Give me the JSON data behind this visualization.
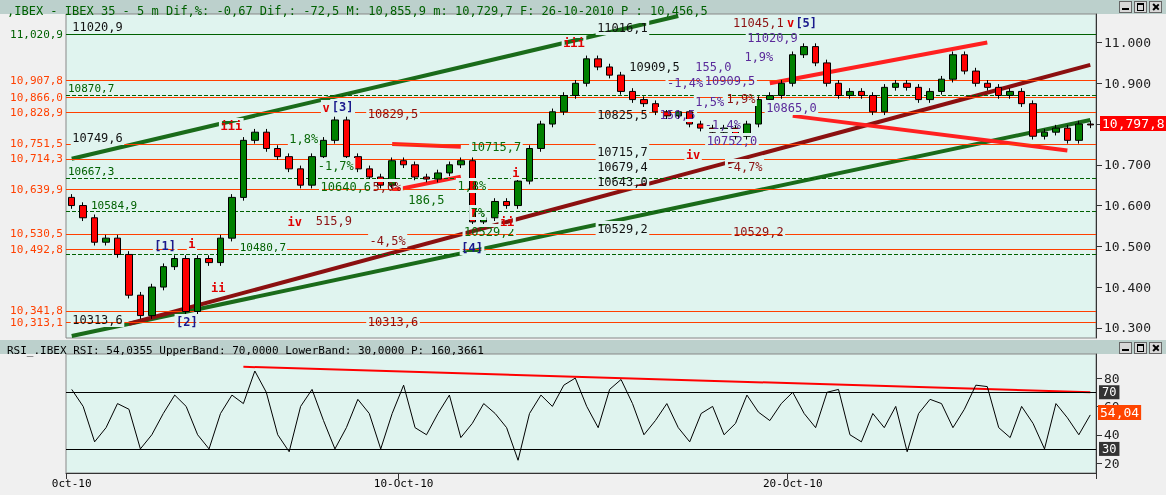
{
  "chart_data": [
    {
      "type": "candlestick",
      "title": ",IBEX - IBEX 35 - 5 m Dif,%: -0,67 Dif,: -72,5 M: 10,855,9 m: 10,729,7 F: 26-10-2010 P : 10,456,5",
      "categories": [
        null,
        null,
        null,
        null,
        null,
        null,
        null,
        null,
        null,
        null,
        null,
        null,
        null,
        null,
        null,
        null,
        null,
        null,
        null,
        null,
        null,
        null,
        null,
        null,
        null,
        null,
        null,
        null,
        null,
        null,
        null,
        null,
        null,
        null,
        null,
        null,
        null,
        null,
        null,
        null,
        null,
        null,
        null,
        null,
        null,
        null,
        null,
        null,
        null,
        null,
        null,
        null,
        null,
        null,
        null,
        null,
        null,
        null,
        null,
        null,
        null,
        null,
        null,
        null,
        null,
        null,
        null,
        null,
        null,
        null,
        null,
        null,
        null,
        null,
        null,
        null,
        null,
        null,
        null,
        null,
        null,
        null,
        null,
        null,
        null,
        null,
        null,
        null,
        null,
        null
      ],
      "ohlc": [
        [
          10620,
          10628,
          10592,
          10600
        ],
        [
          10600,
          10608,
          10562,
          10570
        ],
        [
          10570,
          10578,
          10502,
          10510
        ],
        [
          10510,
          10528,
          10502,
          10520
        ],
        [
          10520,
          10528,
          10472,
          10480
        ],
        [
          10480,
          10488,
          10372,
          10380
        ],
        [
          10380,
          10388,
          10322,
          10330
        ],
        [
          10330,
          10408,
          10322,
          10400
        ],
        [
          10400,
          10458,
          10392,
          10450
        ],
        [
          10450,
          10478,
          10442,
          10470
        ],
        [
          10470,
          10478,
          10332,
          10340
        ],
        [
          10340,
          10478,
          10332,
          10470
        ],
        [
          10470,
          10478,
          10452,
          10460
        ],
        [
          10460,
          10528,
          10452,
          10520
        ],
        [
          10520,
          10628,
          10512,
          10620
        ],
        [
          10620,
          10768,
          10612,
          10760
        ],
        [
          10760,
          10788,
          10752,
          10780
        ],
        [
          10780,
          10788,
          10732,
          10740
        ],
        [
          10740,
          10748,
          10712,
          10720
        ],
        [
          10720,
          10728,
          10682,
          10690
        ],
        [
          10690,
          10698,
          10642,
          10650
        ],
        [
          10650,
          10728,
          10642,
          10720
        ],
        [
          10720,
          10768,
          10712,
          10760
        ],
        [
          10760,
          10818,
          10752,
          10810
        ],
        [
          10810,
          10818,
          10712,
          10720
        ],
        [
          10720,
          10728,
          10682,
          10690
        ],
        [
          10690,
          10698,
          10662,
          10670
        ],
        [
          10670,
          10678,
          10642,
          10650
        ],
        [
          10650,
          10718,
          10642,
          10710
        ],
        [
          10710,
          10718,
          10692,
          10700
        ],
        [
          10700,
          10708,
          10662,
          10670
        ],
        [
          10670,
          10678,
          10657,
          10665
        ],
        [
          10665,
          10688,
          10657,
          10680
        ],
        [
          10680,
          10708,
          10672,
          10700
        ],
        [
          10700,
          10718,
          10692,
          10710
        ],
        [
          10710,
          10718,
          10552,
          10560
        ],
        [
          10560,
          10578,
          10552,
          10570
        ],
        [
          10570,
          10618,
          10562,
          10610
        ],
        [
          10610,
          10618,
          10592,
          10600
        ],
        [
          10600,
          10668,
          10592,
          10660
        ],
        [
          10660,
          10748,
          10652,
          10740
        ],
        [
          10740,
          10808,
          10732,
          10800
        ],
        [
          10800,
          10838,
          10792,
          10830
        ],
        [
          10830,
          10878,
          10822,
          10870
        ],
        [
          10870,
          10908,
          10862,
          10900
        ],
        [
          10900,
          10968,
          10892,
          10960
        ],
        [
          10960,
          10968,
          10932,
          10940
        ],
        [
          10940,
          10948,
          10912,
          10920
        ],
        [
          10920,
          10928,
          10872,
          10880
        ],
        [
          10880,
          10888,
          10852,
          10860
        ],
        [
          10860,
          10868,
          10842,
          10850
        ],
        [
          10850,
          10858,
          10822,
          10830
        ],
        [
          10830,
          10838,
          10812,
          10820
        ],
        [
          10820,
          10838,
          10812,
          10830
        ],
        [
          10830,
          10838,
          10792,
          10800
        ],
        [
          10800,
          10808,
          10782,
          10790
        ],
        [
          10790,
          10798,
          10772,
          10780
        ],
        [
          10780,
          10798,
          10772,
          10790
        ],
        [
          10790,
          10798,
          10762,
          10770
        ],
        [
          10770,
          10808,
          10762,
          10800
        ],
        [
          10800,
          10868,
          10792,
          10860
        ],
        [
          10860,
          10878,
          10852,
          10870
        ],
        [
          10870,
          10908,
          10862,
          10900
        ],
        [
          10900,
          10978,
          10892,
          10970
        ],
        [
          10970,
          10998,
          10962,
          10990
        ],
        [
          10990,
          10998,
          10942,
          10950
        ],
        [
          10950,
          10958,
          10892,
          10900
        ],
        [
          10900,
          10908,
          10862,
          10870
        ],
        [
          10870,
          10888,
          10862,
          10880
        ],
        [
          10880,
          10888,
          10862,
          10870
        ],
        [
          10870,
          10878,
          10822,
          10830
        ],
        [
          10830,
          10898,
          10822,
          10890
        ],
        [
          10890,
          10908,
          10882,
          10900
        ],
        [
          10900,
          10908,
          10882,
          10890
        ],
        [
          10890,
          10898,
          10852,
          10860
        ],
        [
          10860,
          10888,
          10852,
          10880
        ],
        [
          10880,
          10918,
          10872,
          10910
        ],
        [
          10910,
          10978,
          10902,
          10970
        ],
        [
          10970,
          10978,
          10922,
          10930
        ],
        [
          10930,
          10938,
          10892,
          10900
        ],
        [
          10900,
          10908,
          10882,
          10890
        ],
        [
          10890,
          10898,
          10862,
          10870
        ],
        [
          10870,
          10888,
          10862,
          10880
        ],
        [
          10880,
          10888,
          10842,
          10850
        ],
        [
          10850,
          10858,
          10762,
          10770
        ],
        [
          10770,
          10788,
          10762,
          10780
        ],
        [
          10780,
          10798,
          10772,
          10790
        ],
        [
          10790,
          10798,
          10752,
          10760
        ],
        [
          10760,
          10808,
          10752,
          10800
        ],
        [
          10800,
          10808,
          10790,
          10797.8
        ]
      ],
      "colors": [
        "#ff0000",
        "#ff0000",
        "#ff0000",
        "#008000",
        "#ff0000",
        "#ff0000",
        "#ff0000",
        "#008000",
        "#008000",
        "#008000",
        "#ff0000",
        "#008000",
        "#ff0000",
        "#008000",
        "#008000",
        "#008000",
        "#008000",
        "#ff0000",
        "#ff0000",
        "#ff0000",
        "#ff0000",
        "#008000",
        "#008000",
        "#008000",
        "#ff0000",
        "#ff0000",
        "#ff0000",
        "#ff0000",
        "#008000",
        "#ff0000",
        "#ff0000",
        "#ff0000",
        "#008000",
        "#008000",
        "#008000",
        "#ff0000",
        "#008000",
        "#008000",
        "#ff0000",
        "#008000",
        "#008000",
        "#008000",
        "#008000",
        "#008000",
        "#008000",
        "#008000",
        "#ff0000",
        "#ff0000",
        "#ff0000",
        "#ff0000",
        "#ff0000",
        "#ff0000",
        "#ff0000",
        "#008000",
        "#ff0000",
        "#ff0000",
        "#ff0000",
        "#008000",
        "#ff0000",
        "#008000",
        "#008000",
        "#008000",
        "#008000",
        "#008000",
        "#008000",
        "#ff0000",
        "#ff0000",
        "#ff0000",
        "#008000",
        "#ff0000",
        "#ff0000",
        "#008000",
        "#008000",
        "#ff0000",
        "#ff0000",
        "#008000",
        "#008000",
        "#008000",
        "#ff0000",
        "#ff0000",
        "#ff0000",
        "#ff0000",
        "#008000",
        "#ff0000",
        "#ff0000",
        "#008000",
        "#008000",
        "#ff0000",
        "#008000",
        "#ff0000"
      ],
      "series": [
        {
          "type": "line",
          "color": "#1a6b1a",
          "values": [
            10715,
            null,
            null,
            null,
            null,
            null,
            null,
            null,
            null,
            null,
            null,
            null,
            null,
            null,
            null,
            null,
            null,
            null,
            null,
            null,
            null,
            null,
            null,
            null,
            null,
            null,
            null,
            null,
            null,
            null,
            null,
            null,
            null,
            null,
            null,
            null,
            null,
            null,
            null,
            null,
            null,
            null,
            null,
            null,
            null,
            null,
            null,
            null,
            null,
            null,
            null,
            null,
            null,
            11065,
            null,
            null,
            null,
            null,
            null,
            null,
            null,
            null,
            null,
            null,
            null,
            null,
            null,
            null,
            null,
            null,
            null,
            null,
            null,
            null,
            null,
            null,
            null,
            null,
            null,
            null,
            null,
            null,
            null,
            null,
            null,
            null,
            null,
            null,
            null,
            null
          ]
        },
        {
          "type": "line",
          "color": "#1a6b1a",
          "values": [
            10280,
            null,
            null,
            null,
            null,
            null,
            null,
            null,
            null,
            null,
            null,
            null,
            null,
            null,
            null,
            null,
            null,
            null,
            null,
            null,
            null,
            null,
            null,
            null,
            null,
            null,
            null,
            null,
            null,
            null,
            null,
            null,
            null,
            null,
            null,
            null,
            null,
            null,
            null,
            null,
            null,
            null,
            null,
            null,
            null,
            null,
            null,
            null,
            null,
            null,
            null,
            null,
            null,
            null,
            null,
            null,
            null,
            null,
            null,
            null,
            null,
            null,
            null,
            null,
            null,
            null,
            null,
            null,
            null,
            null,
            null,
            null,
            null,
            null,
            null,
            null,
            null,
            null,
            null,
            null,
            null,
            null,
            null,
            null,
            null,
            null,
            null,
            null,
            null,
            10810
          ]
        },
        {
          "type": "line",
          "color": "#8b1010",
          "values": [
            null,
            null,
            null,
            null,
            null,
            10310,
            null,
            null,
            null,
            null,
            null,
            null,
            null,
            null,
            null,
            null,
            null,
            null,
            null,
            null,
            null,
            null,
            null,
            null,
            null,
            null,
            null,
            null,
            null,
            null,
            null,
            null,
            null,
            null,
            null,
            null,
            null,
            null,
            null,
            null,
            null,
            null,
            null,
            null,
            null,
            null,
            null,
            null,
            null,
            null,
            null,
            null,
            null,
            null,
            null,
            null,
            null,
            null,
            null,
            null,
            null,
            null,
            null,
            null,
            null,
            null,
            null,
            null,
            null,
            null,
            null,
            null,
            null,
            null,
            null,
            null,
            null,
            null,
            null,
            null,
            null,
            null,
            null,
            null,
            null,
            null,
            null,
            null,
            null,
            10945
          ]
        },
        {
          "type": "line",
          "color": "#ff2020",
          "values": [
            null,
            null,
            null,
            null,
            null,
            null,
            null,
            null,
            null,
            null,
            null,
            null,
            null,
            null,
            null,
            null,
            null,
            null,
            null,
            null,
            null,
            null,
            null,
            null,
            null,
            null,
            null,
            null,
            null,
            null,
            null,
            null,
            null,
            null,
            null,
            null,
            null,
            null,
            null,
            null,
            null,
            null,
            null,
            null,
            null,
            null,
            null,
            null,
            null,
            null,
            null,
            null,
            null,
            null,
            null,
            null,
            null,
            null,
            null,
            null,
            null,
            10900,
            null,
            null,
            null,
            null,
            null,
            null,
            null,
            null,
            null,
            null,
            null,
            null,
            null,
            null,
            null,
            null,
            null,
            null,
            11000,
            null,
            null,
            null,
            null,
            null,
            null,
            null,
            null,
            null
          ]
        },
        {
          "type": "line",
          "color": "#ff2020",
          "values": [
            null,
            null,
            null,
            null,
            null,
            null,
            null,
            null,
            null,
            null,
            null,
            null,
            null,
            null,
            null,
            null,
            null,
            null,
            null,
            null,
            null,
            null,
            null,
            null,
            null,
            null,
            null,
            null,
            null,
            null,
            null,
            null,
            null,
            null,
            null,
            null,
            null,
            null,
            null,
            null,
            null,
            null,
            null,
            null,
            null,
            null,
            null,
            null,
            null,
            null,
            null,
            null,
            null,
            null,
            null,
            null,
            null,
            null,
            null,
            null,
            null,
            null,
            null,
            10820,
            null,
            null,
            null,
            null,
            null,
            null,
            null,
            null,
            null,
            null,
            null,
            null,
            null,
            null,
            null,
            null,
            null,
            null,
            null,
            null,
            null,
            null,
            null,
            10735,
            null,
            null
          ]
        },
        {
          "type": "line",
          "color": "#ff2020",
          "values": [
            null,
            null,
            null,
            null,
            null,
            null,
            null,
            null,
            null,
            null,
            null,
            null,
            null,
            null,
            null,
            null,
            null,
            null,
            null,
            null,
            null,
            null,
            null,
            null,
            null,
            null,
            null,
            null,
            10751,
            null,
            null,
            null,
            null,
            null,
            10744,
            null,
            null,
            null,
            null,
            null,
            null,
            null,
            null,
            null,
            null,
            null,
            null,
            null,
            null,
            null,
            null,
            null,
            null,
            null,
            null,
            null,
            null,
            null,
            null,
            null,
            null,
            null,
            null,
            null,
            null,
            null,
            null,
            null,
            null,
            null,
            null,
            null,
            null,
            null,
            null,
            null,
            null,
            null,
            null,
            null,
            null,
            null,
            null,
            null,
            null,
            null,
            null,
            null,
            null,
            null
          ]
        },
        {
          "type": "line",
          "color": "#ff2020",
          "values": [
            null,
            null,
            null,
            null,
            null,
            null,
            null,
            null,
            null,
            null,
            null,
            null,
            null,
            null,
            null,
            null,
            null,
            null,
            null,
            null,
            null,
            null,
            null,
            null,
            null,
            null,
            null,
            null,
            10637,
            null,
            null,
            null,
            null,
            null,
            10671,
            null,
            null,
            null,
            null,
            null,
            null,
            null,
            null,
            null,
            null,
            null,
            null,
            null,
            null,
            null,
            null,
            null,
            null,
            null,
            null,
            null,
            null,
            null,
            null,
            null,
            null,
            null,
            null,
            null,
            null,
            null,
            null,
            null,
            null,
            null,
            null,
            null,
            null,
            null,
            null,
            null,
            null,
            null,
            null,
            null,
            null,
            null,
            null,
            null,
            null,
            null,
            null,
            null,
            null,
            null
          ]
        }
      ],
      "ylim": [
        10275,
        11070
      ],
      "yticks": [
        {
          "value": 10300,
          "label": "10.300"
        },
        {
          "value": 10400,
          "label": "10.400"
        },
        {
          "value": 10500,
          "label": "10.500"
        },
        {
          "value": 10600,
          "label": "10.600"
        },
        {
          "value": 10700,
          "label": "10.700"
        },
        {
          "value": 10800,
          "label": null
        },
        {
          "value": 10900,
          "label": "10.900"
        },
        {
          "value": 11000,
          "label": "11.000"
        }
      ],
      "tick_labels": "y",
      "grid": false,
      "ref_lines": [
        {
          "axis": "y",
          "value": 11020.9,
          "label": "11,020,9",
          "color": "#006000",
          "line_style": "solid"
        },
        {
          "axis": "y",
          "value": 10907.8,
          "label": "10,907,8",
          "color": "#ff4000",
          "line_style": "solid"
        },
        {
          "axis": "y",
          "value": 10870.7,
          "label": "10870,7",
          "color": "#006000",
          "line_style": "dashed"
        },
        {
          "axis": "y",
          "value": 10866,
          "label": "10,866,0",
          "color": "#ff4000",
          "line_style": "solid"
        },
        {
          "axis": "y",
          "value": 10828.9,
          "label": "10,828,9",
          "color": "#ff4000",
          "line_style": "solid"
        },
        {
          "axis": "y",
          "value": 10751.5,
          "label": "10,751,5",
          "color": "#ff4000",
          "line_style": "solid"
        },
        {
          "axis": "y",
          "value": 10714.3,
          "label": "10,714,3",
          "color": "#ff4000",
          "line_style": "solid"
        },
        {
          "axis": "y",
          "value": 10667.3,
          "label": "10667,3",
          "color": "#006000",
          "line_style": "dashed"
        },
        {
          "axis": "y",
          "value": 10639.9,
          "label": "10,639,9",
          "color": "#ff4000",
          "line_style": "solid"
        },
        {
          "axis": "y",
          "value": 10584.9,
          "label": "10584,9",
          "color": "#006000",
          "line_style": "dashed"
        },
        {
          "axis": "y",
          "value": 10530.5,
          "label": "10,530,5",
          "color": "#ff4000",
          "line_style": "solid"
        },
        {
          "axis": "y",
          "value": 10492.8,
          "label": "10,492,8",
          "color": "#ff4000",
          "line_style": "solid"
        },
        {
          "axis": "y",
          "value": 10480.7,
          "label": "10480,7",
          "color": "#006000",
          "line_style": "dashed"
        },
        {
          "axis": "y",
          "value": 10341.8,
          "label": "10,341,8",
          "color": "#ff4000",
          "line_style": "solid"
        },
        {
          "axis": "y",
          "value": 10313.1,
          "label": "10,313,1",
          "color": "#ff4000",
          "line_style": "solid"
        }
      ],
      "annotations": [
        "[1]",
        "[2]",
        "i",
        "ii",
        "iii",
        "iv",
        "v",
        "[3]",
        "1,8%",
        "-1,7%",
        "10640,6",
        "5,0%",
        "515,9",
        "10829,5",
        "10313,6",
        "-4,5%",
        "[4]",
        "10715,7",
        "186,5",
        "1,8%",
        "7%",
        "10529,2",
        "i",
        "ii",
        "iii",
        "11016,1",
        "10909,5",
        "10825,5",
        "10715,7",
        "10679,4",
        "10643,0",
        "10529,2",
        "150,5",
        "iv",
        "155,0",
        "-1,4%",
        "10752,0",
        "-4,7%",
        "11045,1",
        "v",
        "[5]",
        "11020,9",
        "1,9%",
        "-1,4%",
        "1,9%",
        "10865,0",
        "10909,5",
        "1,5%",
        "10529,2",
        "10313,6",
        "11020,9",
        "10749,6",
        "10,797,8"
      ]
    },
    {
      "type": "line",
      "title": "RSI_.IBEX RSI: 54,0355 UpperBand: 70,0000 LowerBand: 30,0000 P: 160,3661",
      "categories": [
        "0ct-10",
        null,
        null,
        null,
        null,
        null,
        null,
        null,
        null,
        null,
        null,
        null,
        null,
        null,
        null,
        null,
        null,
        null,
        null,
        null,
        null,
        null,
        null,
        null,
        null,
        null,
        null,
        null,
        null,
        "10-Oct-10",
        null,
        null,
        null,
        null,
        null,
        null,
        null,
        null,
        null,
        null,
        null,
        null,
        null,
        null,
        null,
        null,
        null,
        null,
        null,
        null,
        null,
        null,
        null,
        null,
        null,
        null,
        null,
        null,
        null,
        null,
        null,
        null,
        null,
        "20-Oct-10",
        null,
        null,
        null,
        null,
        null,
        null,
        null,
        null,
        null,
        null,
        null,
        null,
        null,
        null,
        null,
        null,
        null,
        null,
        null,
        null,
        null,
        null,
        null,
        null,
        null,
        null
      ],
      "series": [
        {
          "color": "#000000",
          "values": [
            72,
            60,
            35,
            45,
            62,
            58,
            30,
            40,
            55,
            68,
            60,
            40,
            30,
            55,
            68,
            62,
            85,
            70,
            40,
            28,
            60,
            72,
            50,
            30,
            45,
            65,
            55,
            30,
            55,
            75,
            45,
            40,
            55,
            68,
            38,
            48,
            62,
            55,
            45,
            22,
            55,
            68,
            60,
            75,
            80,
            60,
            45,
            72,
            79,
            62,
            40,
            50,
            62,
            45,
            35,
            55,
            60,
            40,
            48,
            68,
            56,
            50,
            62,
            70,
            55,
            45,
            70,
            72,
            40,
            35,
            55,
            45,
            60,
            28,
            55,
            65,
            62,
            45,
            58,
            75,
            74,
            45,
            38,
            60,
            48,
            30,
            62,
            52,
            40,
            54
          ]
        },
        {
          "color": "#ff0000",
          "values": [
            null,
            null,
            null,
            null,
            null,
            null,
            null,
            null,
            null,
            null,
            null,
            null,
            null,
            null,
            null,
            88,
            null,
            null,
            null,
            null,
            null,
            null,
            null,
            null,
            null,
            null,
            null,
            null,
            null,
            null,
            null,
            null,
            null,
            null,
            null,
            null,
            null,
            null,
            null,
            null,
            null,
            null,
            null,
            null,
            null,
            null,
            null,
            null,
            null,
            null,
            null,
            null,
            null,
            null,
            null,
            null,
            null,
            null,
            null,
            null,
            null,
            null,
            null,
            null,
            null,
            null,
            null,
            null,
            null,
            null,
            null,
            null,
            null,
            null,
            null,
            null,
            null,
            null,
            null,
            null,
            null,
            null,
            null,
            null,
            null,
            null,
            null,
            null,
            null,
            70
          ]
        }
      ],
      "ylim": [
        13,
        97
      ],
      "yticks": [
        20,
        40,
        60,
        80
      ],
      "grid": false,
      "marker": "none",
      "line_style": "solid",
      "ref_lines": [
        {
          "axis": "y",
          "value": 70,
          "label": "70",
          "color": "#000000"
        },
        {
          "axis": "y",
          "value": 30,
          "label": "30",
          "color": "#000000"
        }
      ],
      "annotations": [
        "54,04"
      ]
    }
  ]
}
